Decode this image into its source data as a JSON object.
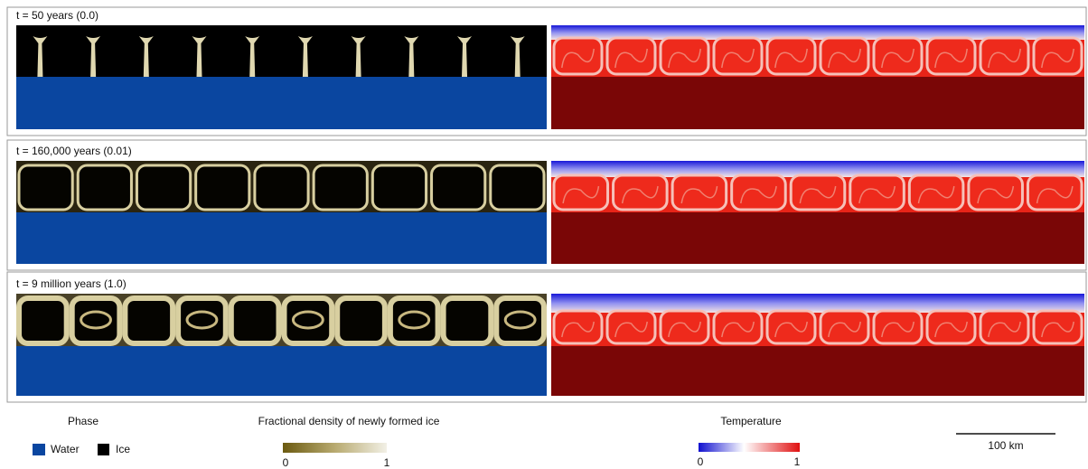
{
  "panels": [
    {
      "label": "t = 50 years (0.0)"
    },
    {
      "label": "t = 160,000 years (0.01)"
    },
    {
      "label": "t = 9 million years (1.0)"
    }
  ],
  "legend": {
    "phase": {
      "title": "Phase",
      "items": [
        "Water",
        "Ice"
      ]
    },
    "density": {
      "title": "Fractional density of newly formed ice",
      "min": 0,
      "max": 1
    },
    "temperature": {
      "title": "Temperature",
      "min": 0,
      "max": 1
    }
  },
  "scale_bar": "100 km"
}
